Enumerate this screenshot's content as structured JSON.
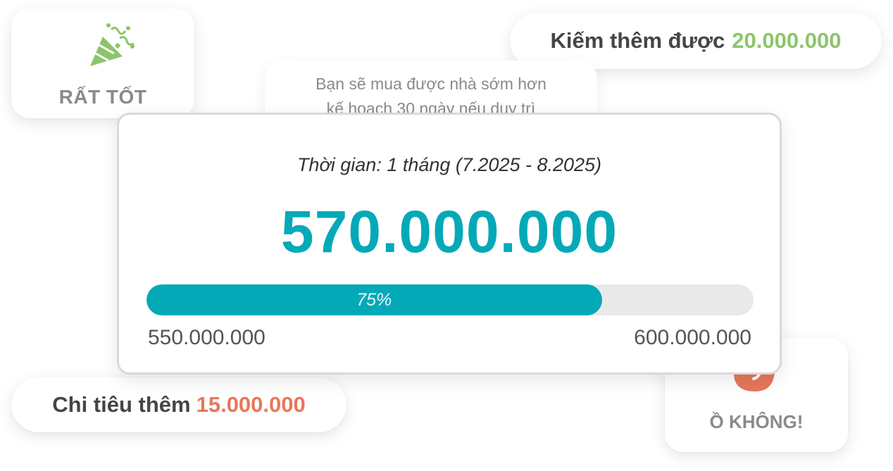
{
  "colors": {
    "accent": "#04a9b7",
    "positive": "#8cc56a",
    "negative": "#e8775a",
    "muted_text": "#8a8a8a"
  },
  "great_card": {
    "icon": "party-popper-icon",
    "label": "RẤT TỐT"
  },
  "earn_card": {
    "label": "Kiếm thêm được",
    "amount": "20.000.000"
  },
  "message_card": {
    "line1": "Bạn sẽ mua được nhà sớm hơn",
    "line2": "kế hoạch 30 ngày nếu duy trì"
  },
  "spend_card": {
    "label": "Chi tiêu thêm",
    "amount": "15.000.000"
  },
  "ohno_card": {
    "icon": "sad-face-icon",
    "label": "Ồ KHÔNG!"
  },
  "main_card": {
    "period": "Thời gian: 1 tháng (7.2025 - 8.2025)",
    "amount": "570.000.000",
    "progress": {
      "percent": 75,
      "label": "75%"
    },
    "min_value": "550.000.000",
    "max_value": "600.000.000"
  }
}
